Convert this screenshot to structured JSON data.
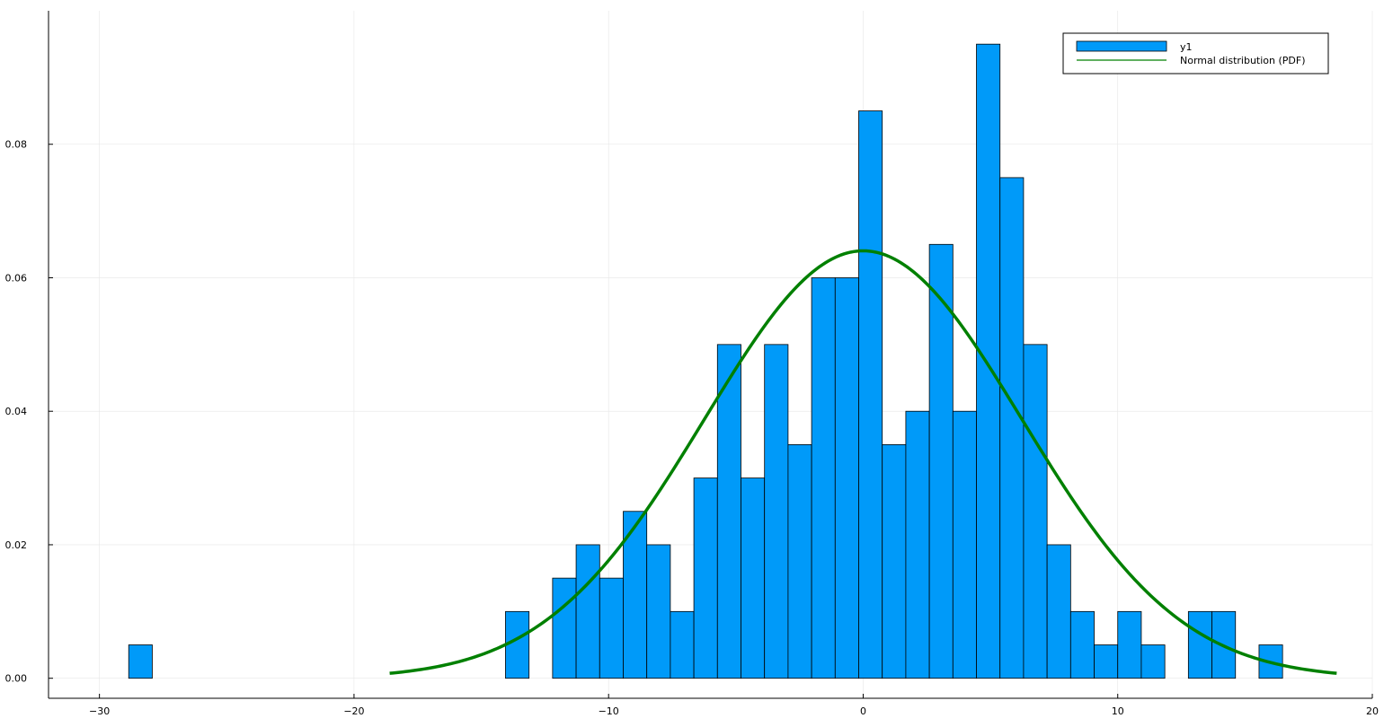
{
  "chart_data": {
    "type": "histogram",
    "xlim": [
      -32,
      20
    ],
    "ylim": [
      -0.003,
      0.1
    ],
    "x_ticks": [
      -30,
      -20,
      -10,
      0,
      10,
      20
    ],
    "x_tick_labels": [
      "−30",
      "−20",
      "−10",
      "0",
      "10",
      "20"
    ],
    "y_ticks": [
      0.0,
      0.02,
      0.04,
      0.06,
      0.08
    ],
    "y_tick_labels": [
      "0.00",
      "0.02",
      "0.04",
      "0.06",
      "0.08"
    ],
    "grid": true,
    "legend_position": "top-right",
    "bin_width": 0.925,
    "bins": [
      {
        "start": -28.85,
        "density": 0.005
      },
      {
        "start": -14.05,
        "density": 0.01
      },
      {
        "start": -12.2,
        "density": 0.015
      },
      {
        "start": -11.275,
        "density": 0.02
      },
      {
        "start": -10.35,
        "density": 0.015
      },
      {
        "start": -9.425,
        "density": 0.025
      },
      {
        "start": -8.5,
        "density": 0.02
      },
      {
        "start": -7.575,
        "density": 0.01
      },
      {
        "start": -6.65,
        "density": 0.03
      },
      {
        "start": -5.725,
        "density": 0.05
      },
      {
        "start": -4.8,
        "density": 0.03
      },
      {
        "start": -3.875,
        "density": 0.05
      },
      {
        "start": -2.95,
        "density": 0.035
      },
      {
        "start": -2.025,
        "density": 0.06
      },
      {
        "start": -1.1,
        "density": 0.06
      },
      {
        "start": -0.175,
        "density": 0.085
      },
      {
        "start": 0.75,
        "density": 0.035
      },
      {
        "start": 1.675,
        "density": 0.04
      },
      {
        "start": 2.6,
        "density": 0.065
      },
      {
        "start": 3.525,
        "density": 0.04
      },
      {
        "start": 4.45,
        "density": 0.095
      },
      {
        "start": 5.375,
        "density": 0.075
      },
      {
        "start": 6.3,
        "density": 0.05
      },
      {
        "start": 7.225,
        "density": 0.02
      },
      {
        "start": 8.15,
        "density": 0.01
      },
      {
        "start": 9.075,
        "density": 0.005
      },
      {
        "start": 10.0,
        "density": 0.01
      },
      {
        "start": 10.925,
        "density": 0.005
      },
      {
        "start": 12.775,
        "density": 0.01
      },
      {
        "start": 13.7,
        "density": 0.01
      },
      {
        "start": 15.55,
        "density": 0.005
      }
    ],
    "series": [
      {
        "name": "y1",
        "kind": "histogram",
        "color": "#009af9",
        "edge_color": "#000000"
      },
      {
        "name": "Normal distribution (PDF)",
        "kind": "line",
        "color": "#008000",
        "mean": 0.0,
        "std": 6.23,
        "x_range": [
          -18.6,
          18.6
        ]
      }
    ]
  }
}
